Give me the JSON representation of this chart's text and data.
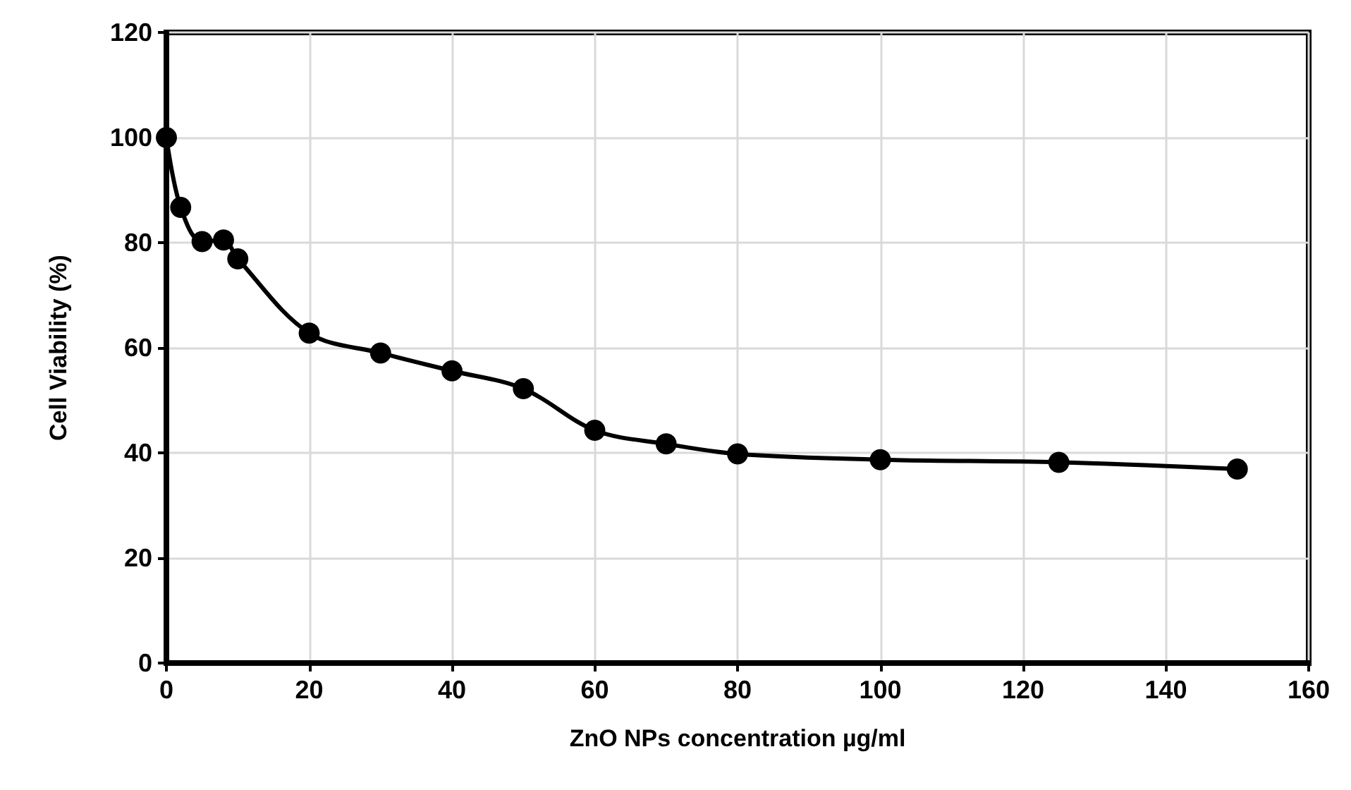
{
  "chart_data": {
    "type": "line",
    "xlabel": "ZnO NPs concentration µg/ml",
    "ylabel": "Cell Viability (%)",
    "x": [
      0,
      2,
      5,
      8,
      10,
      20,
      30,
      40,
      50,
      60,
      70,
      80,
      100,
      125,
      150
    ],
    "series": [
      {
        "color": "#000000",
        "values": [
          100,
          86.7,
          80.2,
          80.5,
          76.9,
          62.8,
          59.0,
          55.6,
          52.2,
          44.3,
          41.7,
          39.8,
          38.7,
          38.2,
          36.9
        ]
      }
    ],
    "xlim": [
      0,
      160
    ],
    "xticks": [
      0,
      20,
      40,
      60,
      80,
      100,
      120,
      140,
      160
    ],
    "ylim": [
      0,
      120
    ],
    "yticks": [
      0,
      20,
      40,
      60,
      80,
      100,
      120
    ],
    "grid": true,
    "marker": "circle",
    "line_style": "solid"
  }
}
